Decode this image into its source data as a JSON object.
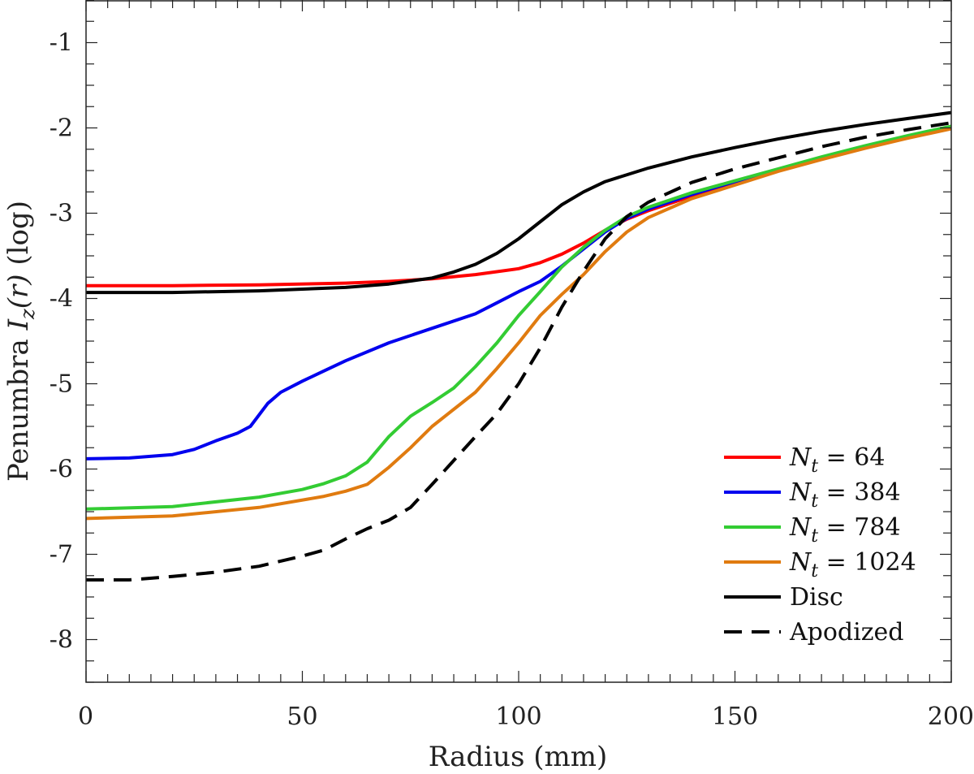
{
  "chart_data": {
    "type": "line",
    "title": "",
    "xlabel": "Radius (mm)",
    "ylabel_prefix": "Penumbra ",
    "ylabel_math_I": "I",
    "ylabel_math_sub": "z",
    "ylabel_math_arg": "(r)",
    "ylabel_suffix": " (log)",
    "xlim": [
      0,
      200
    ],
    "ylim": [
      -8.5,
      -0.5
    ],
    "x_ticks": [
      0,
      50,
      100,
      150,
      200
    ],
    "x_tick_labels": [
      "0",
      "50",
      "100",
      "150",
      "200"
    ],
    "y_ticks": [
      -1,
      -2,
      -3,
      -4,
      -5,
      -6,
      -7,
      -8
    ],
    "y_tick_labels": [
      "-1",
      "-2",
      "-3",
      "-4",
      "-5",
      "-6",
      "-7",
      "-8"
    ],
    "grid": false,
    "legend_position": "bottom-right",
    "series": [
      {
        "name": "N_t = 64",
        "legend_lhs": "N",
        "legend_sub": "t",
        "legend_rhs": " = 64",
        "color": "#ff0000",
        "dash": "solid",
        "x": [
          0,
          20,
          40,
          60,
          70,
          80,
          90,
          100,
          105,
          110,
          115,
          120,
          125,
          130,
          140,
          150,
          160,
          170,
          180,
          190,
          200
        ],
        "y": [
          -3.85,
          -3.85,
          -3.84,
          -3.82,
          -3.8,
          -3.77,
          -3.72,
          -3.65,
          -3.58,
          -3.48,
          -3.35,
          -3.2,
          -3.07,
          -2.97,
          -2.8,
          -2.64,
          -2.5,
          -2.35,
          -2.22,
          -2.1,
          -2.0
        ]
      },
      {
        "name": "N_t = 384",
        "legend_lhs": "N",
        "legend_sub": "t",
        "legend_rhs": " = 384",
        "color": "#0000ee",
        "dash": "solid",
        "x": [
          0,
          10,
          20,
          25,
          30,
          35,
          38,
          42,
          45,
          50,
          55,
          60,
          70,
          80,
          90,
          95,
          100,
          105,
          110,
          115,
          120,
          125,
          130,
          140,
          150,
          160,
          170,
          180,
          190,
          200
        ],
        "y": [
          -5.88,
          -5.87,
          -5.83,
          -5.77,
          -5.67,
          -5.58,
          -5.5,
          -5.23,
          -5.1,
          -4.97,
          -4.85,
          -4.73,
          -4.52,
          -4.35,
          -4.18,
          -4.05,
          -3.92,
          -3.8,
          -3.62,
          -3.42,
          -3.22,
          -3.06,
          -2.95,
          -2.78,
          -2.63,
          -2.49,
          -2.35,
          -2.22,
          -2.1,
          -1.99
        ]
      },
      {
        "name": "N_t = 784",
        "legend_lhs": "N",
        "legend_sub": "t",
        "legend_rhs": " = 784",
        "color": "#33cc33",
        "dash": "solid",
        "x": [
          0,
          20,
          40,
          50,
          55,
          60,
          65,
          70,
          75,
          80,
          85,
          90,
          95,
          100,
          105,
          110,
          115,
          120,
          125,
          130,
          140,
          150,
          160,
          170,
          180,
          190,
          200
        ],
        "y": [
          -6.47,
          -6.44,
          -6.33,
          -6.24,
          -6.17,
          -6.08,
          -5.92,
          -5.62,
          -5.38,
          -5.22,
          -5.05,
          -4.8,
          -4.52,
          -4.2,
          -3.92,
          -3.63,
          -3.4,
          -3.2,
          -3.04,
          -2.93,
          -2.76,
          -2.62,
          -2.48,
          -2.34,
          -2.21,
          -2.09,
          -1.98
        ]
      },
      {
        "name": "N_t = 1024",
        "legend_lhs": "N",
        "legend_sub": "t",
        "legend_rhs": " = 1024",
        "color": "#e07b10",
        "dash": "solid",
        "x": [
          0,
          20,
          40,
          55,
          60,
          65,
          70,
          75,
          80,
          85,
          90,
          95,
          100,
          105,
          110,
          115,
          120,
          125,
          130,
          140,
          150,
          160,
          170,
          180,
          190,
          200
        ],
        "y": [
          -6.58,
          -6.55,
          -6.45,
          -6.32,
          -6.26,
          -6.18,
          -5.98,
          -5.75,
          -5.5,
          -5.3,
          -5.1,
          -4.82,
          -4.52,
          -4.2,
          -3.95,
          -3.72,
          -3.45,
          -3.22,
          -3.05,
          -2.83,
          -2.67,
          -2.51,
          -2.37,
          -2.24,
          -2.12,
          -2.01
        ]
      },
      {
        "name": "Disc",
        "legend_lhs": "",
        "legend_sub": "",
        "legend_rhs": "Disc",
        "color": "#000000",
        "dash": "solid",
        "x": [
          0,
          20,
          40,
          60,
          70,
          80,
          85,
          90,
          95,
          100,
          105,
          110,
          115,
          120,
          130,
          140,
          150,
          160,
          170,
          180,
          190,
          200
        ],
        "y": [
          -3.93,
          -3.93,
          -3.91,
          -3.87,
          -3.83,
          -3.76,
          -3.69,
          -3.6,
          -3.47,
          -3.3,
          -3.1,
          -2.9,
          -2.75,
          -2.63,
          -2.47,
          -2.34,
          -2.23,
          -2.13,
          -2.04,
          -1.96,
          -1.89,
          -1.82
        ]
      },
      {
        "name": "Apodized",
        "legend_lhs": "",
        "legend_sub": "",
        "legend_rhs": "Apodized",
        "color": "#000000",
        "dash": "dashed",
        "x": [
          0,
          10,
          20,
          30,
          40,
          50,
          55,
          60,
          65,
          70,
          75,
          80,
          85,
          90,
          95,
          100,
          105,
          110,
          115,
          120,
          125,
          130,
          140,
          150,
          160,
          170,
          180,
          190,
          200
        ],
        "y": [
          -7.3,
          -7.3,
          -7.26,
          -7.21,
          -7.14,
          -7.02,
          -6.95,
          -6.82,
          -6.7,
          -6.6,
          -6.45,
          -6.18,
          -5.9,
          -5.62,
          -5.35,
          -5.0,
          -4.58,
          -4.1,
          -3.68,
          -3.3,
          -3.04,
          -2.87,
          -2.64,
          -2.48,
          -2.35,
          -2.22,
          -2.11,
          -2.02,
          -1.94
        ]
      }
    ]
  }
}
